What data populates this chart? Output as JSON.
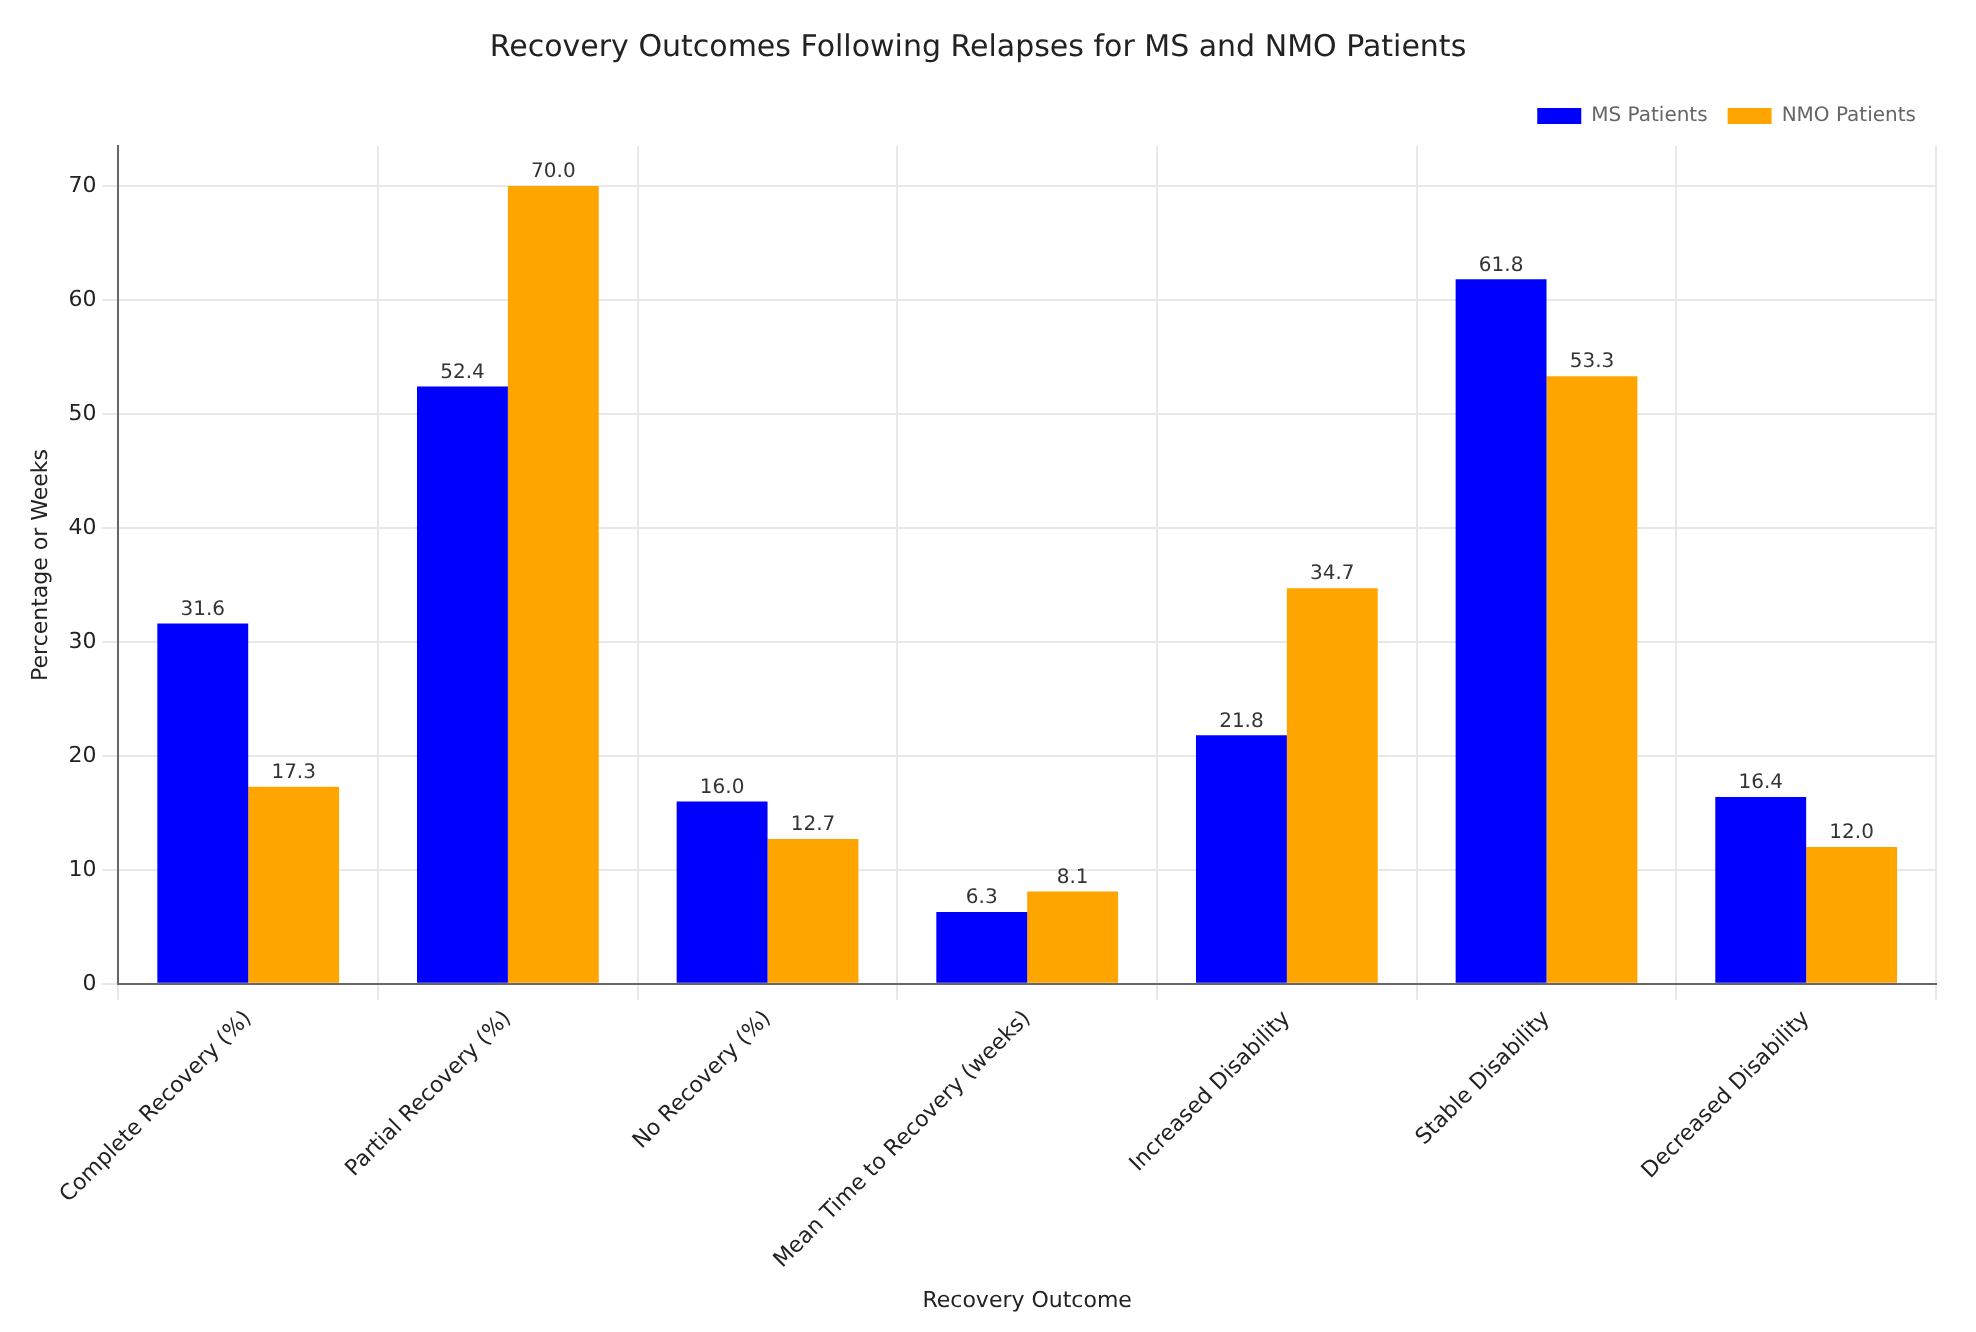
{
  "chart_data": {
    "type": "bar",
    "title": "Recovery Outcomes Following Relapses for MS and NMO Patients",
    "xlabel": "Recovery Outcome",
    "ylabel": "Percentage or Weeks",
    "categories": [
      "Complete Recovery (%)",
      "Partial Recovery (%)",
      "No Recovery (%)",
      "Mean Time to Recovery (weeks)",
      "Increased Disability",
      "Stable Disability",
      "Decreased Disability"
    ],
    "series": [
      {
        "name": "MS Patients",
        "color": "#0000ff",
        "values": [
          31.6,
          52.4,
          16.0,
          6.3,
          21.8,
          61.8,
          16.4
        ],
        "value_labels": [
          "31.6",
          "52.4",
          "16.0",
          "6.3",
          "21.8",
          "61.8",
          "16.4"
        ]
      },
      {
        "name": "NMO Patients",
        "color": "#ffa500",
        "values": [
          17.3,
          70.0,
          12.7,
          8.1,
          34.7,
          53.3,
          12.0
        ],
        "value_labels": [
          "17.3",
          "70.0",
          "12.7",
          "8.1",
          "34.7",
          "53.3",
          "12.0"
        ]
      }
    ],
    "ylim": [
      0,
      73.5
    ],
    "yticks": [
      0,
      10,
      20,
      30,
      40,
      50,
      60,
      70
    ],
    "grid": true,
    "legend": "top right"
  }
}
